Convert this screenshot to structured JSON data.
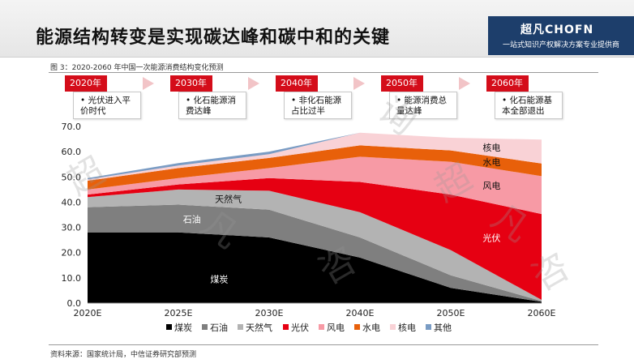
{
  "header": {
    "title": "能源结构转变是实现碳达峰和碳中和的关键",
    "brand_logo": "超凡CHOFN",
    "brand_slogan": "一站式知识产权解决方案专业提供商"
  },
  "figure": {
    "caption": "图 3：2020-2060 年中国一次能源消费结构变化预测",
    "source": "资料来源：国家统计局，中信证券研究部预测"
  },
  "timeline": [
    {
      "year": "2020年",
      "text": "光伏进入平价时代"
    },
    {
      "year": "2030年前",
      "text": "化石能源消费达峰"
    },
    {
      "year": "2040年后",
      "text": "非化石能源占比过半"
    },
    {
      "year": "2050年",
      "text": "能源消费总量达峰"
    },
    {
      "year": "2060年",
      "text": "化石能源基本全部退出"
    }
  ],
  "watermark": [
    "超",
    "凡",
    "咨",
    "询"
  ],
  "colors": {
    "accent_red": "#d40d1a",
    "brand_blue": "#1d3e6b",
    "coal": "#000000",
    "oil": "#7f7f7f",
    "gas": "#b3b3b3",
    "solar": "#e60012",
    "wind": "#f79aa5",
    "hydro": "#e8600a",
    "nuclear": "#f9d2d6",
    "other": "#7a9cc4"
  },
  "chart_data": {
    "type": "area",
    "stacked": true,
    "x": [
      "2020E",
      "2025E",
      "2030E",
      "2040E",
      "2050E",
      "2060E"
    ],
    "ylim": [
      0,
      70
    ],
    "yticks": [
      "0.0",
      "10.0",
      "20.0",
      "30.0",
      "40.0",
      "50.0",
      "60.0",
      "70.0"
    ],
    "legend_position": "bottom",
    "series": [
      {
        "name": "煤炭",
        "values": [
          28,
          28,
          26,
          18,
          6,
          0.5
        ]
      },
      {
        "name": "石油",
        "values": [
          10,
          11,
          11,
          8,
          5,
          0.3
        ]
      },
      {
        "name": "天然气",
        "values": [
          4,
          6,
          7.5,
          10,
          10,
          0.5
        ]
      },
      {
        "name": "光伏",
        "values": [
          1,
          2,
          5,
          12,
          22,
          34
        ]
      },
      {
        "name": "风电",
        "values": [
          2,
          2.5,
          4,
          10,
          13,
          15
        ]
      },
      {
        "name": "水电",
        "values": [
          3.5,
          4,
          4,
          4.5,
          4.5,
          5
        ]
      },
      {
        "name": "核电",
        "values": [
          0.5,
          1,
          1.5,
          5,
          5,
          9.5
        ]
      },
      {
        "name": "其他",
        "values": [
          0.5,
          1,
          1,
          0,
          0,
          0
        ]
      }
    ],
    "area_labels": [
      {
        "series": "天然气",
        "text": "天然气"
      },
      {
        "series": "石油",
        "text": "石油"
      },
      {
        "series": "煤炭",
        "text": "煤炭"
      },
      {
        "series": "核电",
        "text": "核电"
      },
      {
        "series": "水电",
        "text": "水电"
      },
      {
        "series": "风电",
        "text": "风电"
      },
      {
        "series": "光伏",
        "text": "光伏"
      }
    ]
  }
}
